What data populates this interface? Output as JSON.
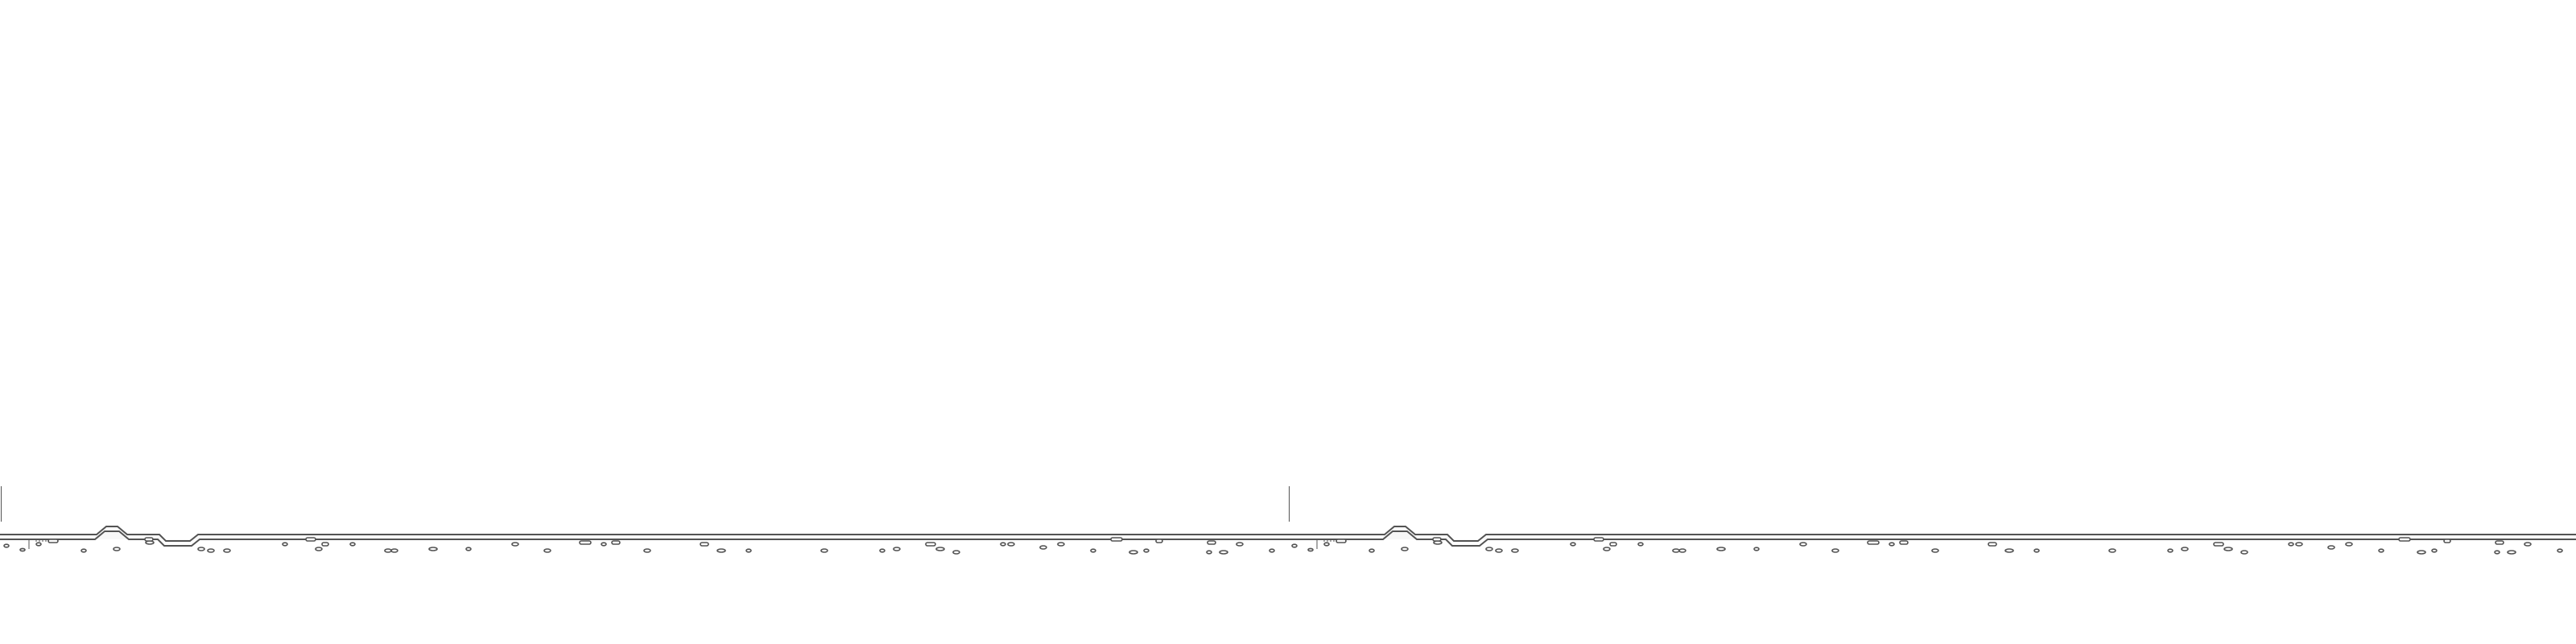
{
  "game": {
    "name": "runner-side-scroller",
    "background_color": "#ffffff",
    "ink_color": "#535353",
    "ground_fill": "#f7f7f7",
    "panels": [
      {
        "name": "left-panel"
      },
      {
        "name": "right-panel"
      }
    ],
    "elements": {
      "horizon": "ground-horizon-line",
      "bumps": "terrain-bump",
      "dips": "terrain-dip",
      "pebbles": "ground-pebble",
      "dashes": "ground-dash",
      "posts": "start-marker-post"
    }
  }
}
